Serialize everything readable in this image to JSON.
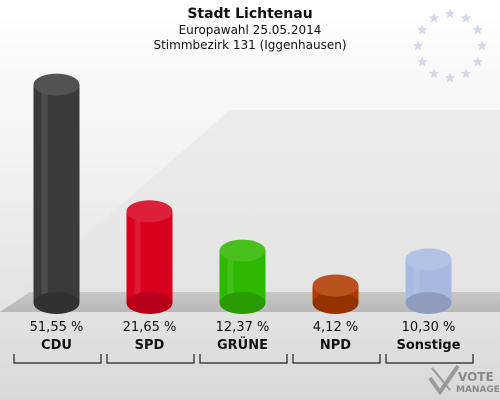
{
  "header": {
    "title": "Stadt Lichtenau",
    "subtitle": "Europawahl 25.05.2014",
    "district": "Stimmbezirk 131 (Iggenhausen)"
  },
  "logo": {
    "line1": "VOTE",
    "line2": "MANAGER"
  },
  "chart_data": {
    "type": "bar",
    "title": "Stadt Lichtenau",
    "subtitle": "Europawahl 25.05.2014",
    "categories": [
      "CDU",
      "SPD",
      "GRÜNE",
      "NPD",
      "Sonstige"
    ],
    "values": [
      51.55,
      21.65,
      12.37,
      4.12,
      10.3
    ],
    "value_labels": [
      "51,55 %",
      "21,65 %",
      "12,37 %",
      "4,12 %",
      "10,30 %"
    ],
    "colors": [
      "#3a3a3a",
      "#d9001e",
      "#2fb800",
      "#b03a00",
      "#a9b8e0"
    ],
    "ylim": [
      0,
      55
    ],
    "grid": false,
    "legend": "none"
  }
}
